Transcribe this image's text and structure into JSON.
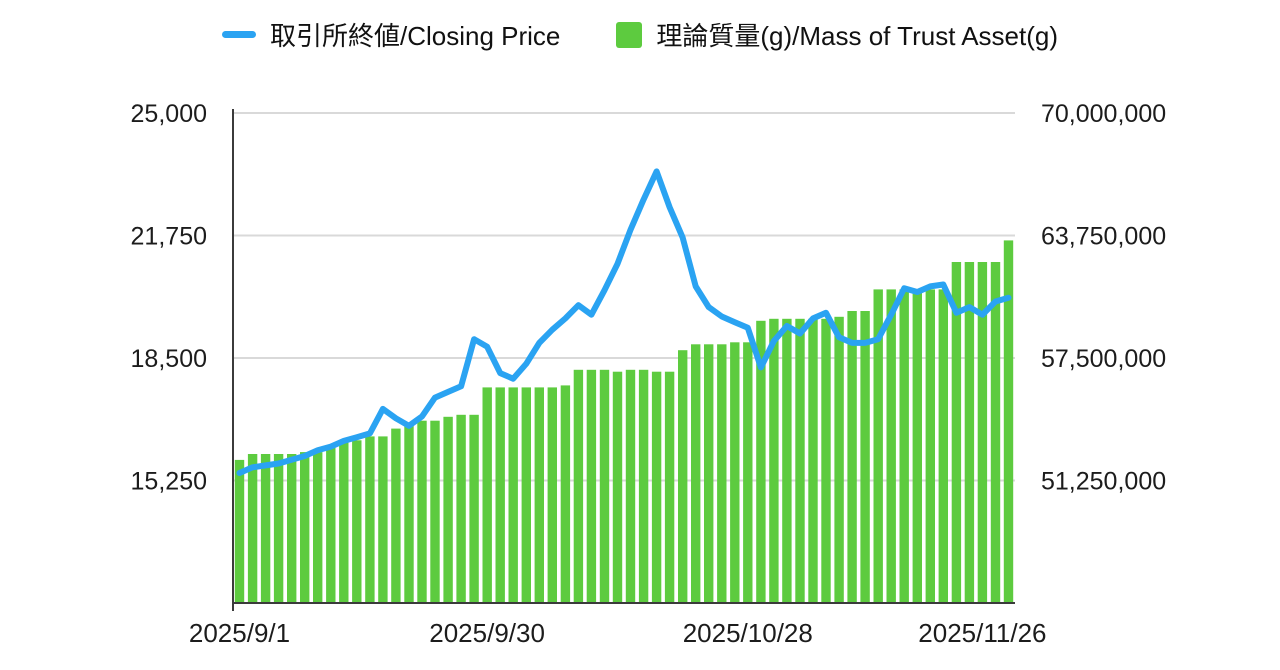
{
  "legend": {
    "items": [
      {
        "label": "取引所終値/Closing Price",
        "type": "line",
        "color": "#2aa3f2"
      },
      {
        "label": "理論質量(g)/Mass of Trust Asset(g)",
        "type": "bar",
        "color": "#5dcb3f"
      }
    ]
  },
  "chart_data": {
    "type": "combo",
    "grid": true,
    "legend_position": "top-center",
    "left_axis": {
      "min": 12000,
      "max": 25000,
      "ticks": [
        25000,
        21750,
        18500,
        15250
      ],
      "tick_labels": [
        "25,000",
        "21,750",
        "18,500",
        "15,250"
      ],
      "series_name": "取引所終値/Closing Price"
    },
    "right_axis": {
      "min": 45000000,
      "max": 70000000,
      "ticks": [
        70000000,
        63750000,
        57500000,
        51250000
      ],
      "tick_labels": [
        "70,000,000",
        "63,750,000",
        "57,500,000",
        "51,250,000"
      ],
      "series_name": "理論質量(g)/Mass of Trust Asset(g)"
    },
    "x_ticks": [
      {
        "index": 0,
        "label": "2025/9/1"
      },
      {
        "index": 19,
        "label": "2025/9/30"
      },
      {
        "index": 39,
        "label": "2025/10/28"
      },
      {
        "index": 57,
        "label": "2025/11/26"
      }
    ],
    "series": [
      {
        "name": "取引所終値/Closing Price",
        "type": "line",
        "axis": "left",
        "color": "#2aa3f2",
        "values": [
          15450,
          15600,
          15650,
          15700,
          15800,
          15900,
          16050,
          16150,
          16300,
          16400,
          16500,
          17150,
          16900,
          16700,
          16950,
          17450,
          17600,
          17750,
          19000,
          18800,
          18100,
          17950,
          18350,
          18900,
          19250,
          19550,
          19900,
          19650,
          20300,
          21000,
          21900,
          22700,
          23450,
          22500,
          21700,
          20400,
          19850,
          19600,
          19450,
          19300,
          18250,
          18950,
          19350,
          19150,
          19550,
          19700,
          19050,
          18900,
          18900,
          19000,
          19650,
          20350,
          20250,
          20400,
          20450,
          19700,
          19850,
          19650,
          20000,
          20100
        ]
      },
      {
        "name": "理論質量(g)/Mass of Trust Asset(g)",
        "type": "bar",
        "axis": "right",
        "color": "#5dcb3f",
        "values": [
          52300000,
          52600000,
          52600000,
          52600000,
          52600000,
          52700000,
          52700000,
          53000000,
          53300000,
          53300000,
          53500000,
          53500000,
          53900000,
          54200000,
          54300000,
          54300000,
          54500000,
          54600000,
          54600000,
          56000000,
          56000000,
          56000000,
          56000000,
          56000000,
          56000000,
          56100000,
          56900000,
          56900000,
          56900000,
          56800000,
          56900000,
          56900000,
          56800000,
          56800000,
          57900000,
          58200000,
          58200000,
          58200000,
          58300000,
          58300000,
          59400000,
          59500000,
          59500000,
          59500000,
          59500000,
          59500000,
          59600000,
          59900000,
          59900000,
          61000000,
          61000000,
          61000000,
          60900000,
          61000000,
          61000000,
          62400000,
          62400000,
          62400000,
          62400000,
          63500000
        ]
      }
    ],
    "colors": {
      "gridline": "#d9d9d9",
      "axis_line": "#3b3b3b",
      "text": "#1c1c1c"
    }
  }
}
